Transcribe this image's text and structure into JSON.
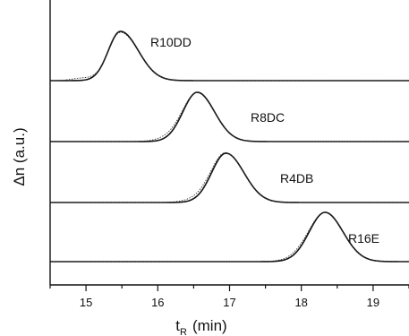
{
  "chart_data": {
    "type": "line",
    "title": "",
    "xlabel": "t",
    "xlabel_sub": "R",
    "xlabel_unit": "(min)",
    "ylabel": "Δn (a.u.)",
    "xlim": [
      14.5,
      19.5
    ],
    "x_ticks": [
      "15",
      "16",
      "17",
      "18",
      "19"
    ],
    "grid": false,
    "series": [
      {
        "name": "R10DD",
        "peak": 15.48,
        "left_width": 0.17,
        "right_width": 0.25,
        "height": 1.0,
        "dotted_shoulder": [
          14.95,
          0.05,
          0.15
        ]
      },
      {
        "name": "R8DC",
        "peak": 16.55,
        "left_width": 0.2,
        "right_width": 0.24,
        "height": 1.0,
        "dotted_shoulder": [
          16.2,
          0.07,
          0.2
        ]
      },
      {
        "name": "R4DB",
        "peak": 16.95,
        "left_width": 0.2,
        "right_width": 0.25,
        "height": 1.0,
        "dotted_shoulder": [
          16.65,
          0.08,
          0.22
        ]
      },
      {
        "name": "R16E",
        "peak": 18.33,
        "left_width": 0.22,
        "right_width": 0.25,
        "height": 1.0,
        "dotted_shoulder": [
          18.0,
          0.06,
          0.2
        ]
      }
    ]
  }
}
